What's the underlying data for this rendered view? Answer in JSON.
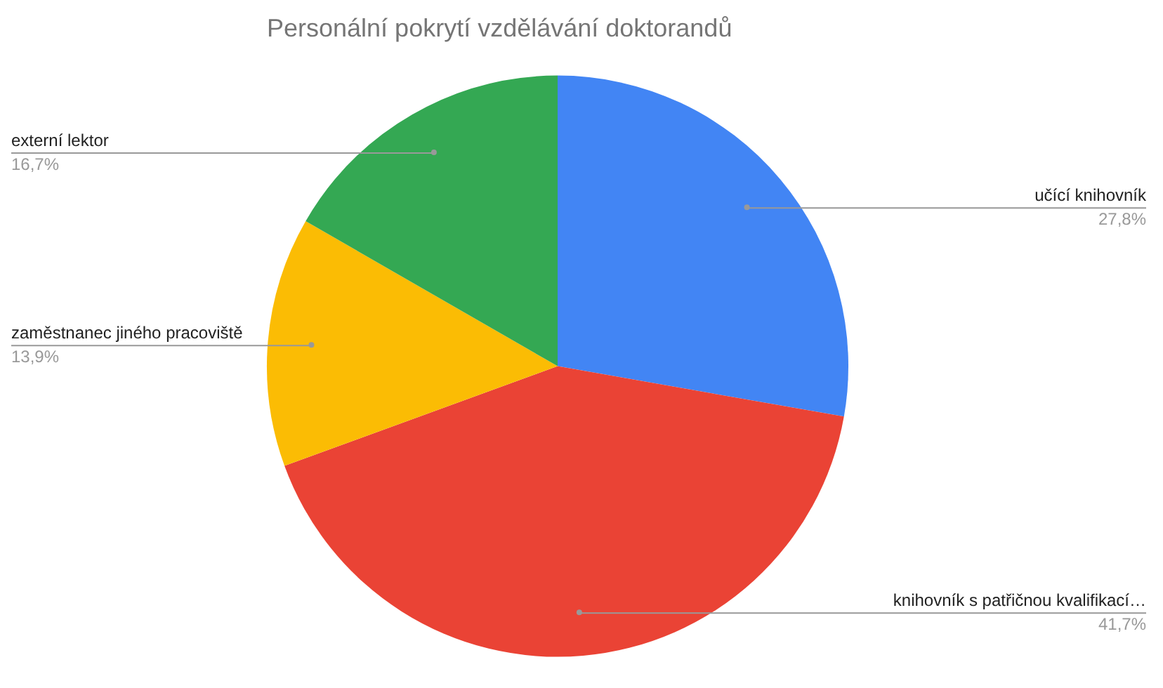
{
  "chart_data": {
    "type": "pie",
    "title": "Personální pokrytí vzdělávání doktorandů",
    "categories": [
      "učící knihovník",
      "knihovník s patřičnou kvalifikací…",
      "zaměstnanec jiného pracoviště",
      "externí lektor"
    ],
    "values": [
      27.8,
      41.7,
      13.9,
      16.7
    ],
    "colors": [
      "#4285f4",
      "#ea4335",
      "#fbbc04",
      "#34a853"
    ],
    "value_labels": [
      "27,8%",
      "41,7%",
      "13,9%",
      "16,7%"
    ],
    "legend": false
  }
}
